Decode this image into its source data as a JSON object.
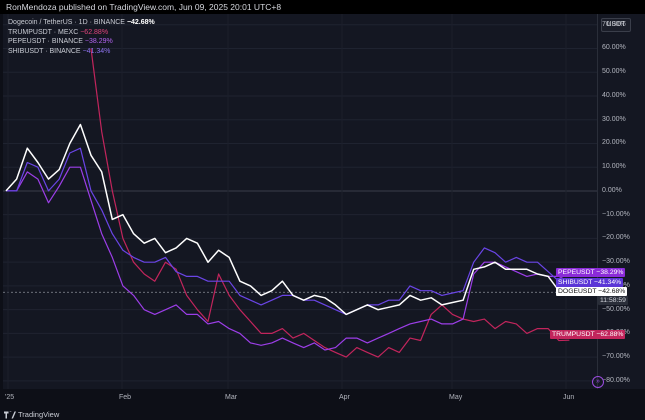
{
  "header": {
    "published_text": "RonMendoza published on TradingView.com, Jun 09, 2025 20:01 UTC+8"
  },
  "legend": {
    "main": {
      "label": "Dogecoin / TetherUS · 1D · BINANCE",
      "value": "−42.68%"
    },
    "items": [
      {
        "label": "TRUMPUSDT · MEXC",
        "value": "−62.88%",
        "color": "#c2255c"
      },
      {
        "label": "PEPEUSDT · BINANCE",
        "value": "−38.29%",
        "color": "#9c3ee8"
      },
      {
        "label": "SHIBUSDT · BINANCE",
        "value": "−41.34%",
        "color": "#6a45e6"
      }
    ]
  },
  "currency_button": "USDT",
  "y_axis": {
    "ticks": [
      {
        "label": "70.00%",
        "value": 70
      },
      {
        "label": "60.00%",
        "value": 60
      },
      {
        "label": "50.00%",
        "value": 50
      },
      {
        "label": "40.00%",
        "value": 40
      },
      {
        "label": "30.00%",
        "value": 30
      },
      {
        "label": "20.00%",
        "value": 20
      },
      {
        "label": "10.00%",
        "value": 10
      },
      {
        "label": "0.00%",
        "value": 0
      },
      {
        "label": "−10.00%",
        "value": -10
      },
      {
        "label": "−20.00%",
        "value": -20
      },
      {
        "label": "−30.00%",
        "value": -30
      },
      {
        "label": "−40.00%",
        "value": -40
      },
      {
        "label": "−50.00%",
        "value": -50
      },
      {
        "label": "−60.00%",
        "value": -60
      },
      {
        "label": "−70.00%",
        "value": -70
      },
      {
        "label": "−80.00%",
        "value": -80
      }
    ]
  },
  "x_axis": {
    "labels": [
      "'25",
      "Feb",
      "Mar",
      "Apr",
      "May",
      "Jun"
    ]
  },
  "price_tags": {
    "pepe": {
      "symbol": "PEPEUSDT",
      "value": "−38.29%"
    },
    "shib": {
      "symbol": "SHIBUSDT",
      "value": "−41.34%"
    },
    "doge": {
      "symbol": "DOGEUSDT",
      "value": "−42.68%"
    },
    "time": "11:58:59",
    "trump": {
      "symbol": "TRUMPUSDT",
      "value": "−62.88%"
    }
  },
  "footer": {
    "brand": "TradingView"
  },
  "colors": {
    "doge": "#ffffff",
    "trump": "#c2255c",
    "pepe": "#9c3ee8",
    "shib": "#6a45e6",
    "background": "#141722"
  },
  "chart_data": {
    "type": "line",
    "x": [
      "2025-01-01",
      "2025-01-04",
      "2025-01-07",
      "2025-01-10",
      "2025-01-13",
      "2025-01-16",
      "2025-01-19",
      "2025-01-22",
      "2025-01-25",
      "2025-01-28",
      "2025-01-31",
      "2025-02-03",
      "2025-02-06",
      "2025-02-09",
      "2025-02-12",
      "2025-02-15",
      "2025-02-18",
      "2025-02-21",
      "2025-02-24",
      "2025-02-27",
      "2025-03-02",
      "2025-03-05",
      "2025-03-08",
      "2025-03-11",
      "2025-03-14",
      "2025-03-17",
      "2025-03-20",
      "2025-03-23",
      "2025-03-26",
      "2025-03-29",
      "2025-04-01",
      "2025-04-04",
      "2025-04-07",
      "2025-04-10",
      "2025-04-13",
      "2025-04-16",
      "2025-04-19",
      "2025-04-22",
      "2025-04-25",
      "2025-04-28",
      "2025-05-01",
      "2025-05-04",
      "2025-05-07",
      "2025-05-10",
      "2025-05-13",
      "2025-05-16",
      "2025-05-19",
      "2025-05-22",
      "2025-05-25",
      "2025-05-28",
      "2025-05-31",
      "2025-06-03",
      "2025-06-06",
      "2025-06-09"
    ],
    "series": [
      {
        "name": "DOGEUSDT",
        "color": "#ffffff",
        "values": [
          0,
          5,
          18,
          12,
          5,
          9,
          20,
          28,
          15,
          8,
          -12,
          -10,
          -18,
          -22,
          -20,
          -26,
          -24,
          -20,
          -22,
          -30,
          -25,
          -28,
          -38,
          -40,
          -44,
          -42,
          -38,
          -44,
          -46,
          -44,
          -45,
          -48,
          -52,
          -50,
          -48,
          -50,
          -49,
          -48,
          -44,
          -46,
          -45,
          -48,
          -47,
          -46,
          -33,
          -32,
          -30,
          -33,
          -33,
          -33,
          -35,
          -36,
          -42,
          -42.68
        ]
      },
      {
        "name": "TRUMPUSDT",
        "color": "#c2255c",
        "values": [
          null,
          null,
          null,
          null,
          null,
          null,
          null,
          null,
          60,
          25,
          0,
          -20,
          -30,
          -35,
          -38,
          -30,
          -33,
          -44,
          -50,
          -55,
          -35,
          -44,
          -50,
          -55,
          -60,
          -60,
          -58,
          -62,
          -60,
          -63,
          -66,
          -68,
          -70,
          -66,
          -68,
          -70,
          -66,
          -68,
          -62,
          -63,
          -52,
          -48,
          -52,
          -54,
          -55,
          -54,
          -58,
          -55,
          -56,
          -60,
          -58,
          -58,
          -63,
          -62.88
        ]
      },
      {
        "name": "PEPEUSDT",
        "color": "#9c3ee8",
        "values": [
          0,
          0,
          8,
          5,
          -5,
          2,
          10,
          10,
          -4,
          -18,
          -28,
          -40,
          -44,
          -50,
          -52,
          -50,
          -48,
          -52,
          -52,
          -56,
          -55,
          -58,
          -60,
          -64,
          -65,
          -64,
          -62,
          -64,
          -66,
          -64,
          -67,
          -66,
          -62,
          -62,
          -64,
          -62,
          -60,
          -58,
          -56,
          -55,
          -54,
          -56,
          -56,
          -54,
          -35,
          -30,
          -30,
          -32,
          -34,
          -36,
          -35,
          -36,
          -36,
          -38.29
        ]
      },
      {
        "name": "SHIBUSDT",
        "color": "#6a45e6",
        "values": [
          0,
          0,
          12,
          10,
          0,
          5,
          16,
          18,
          0,
          -8,
          -18,
          -25,
          -28,
          -30,
          -30,
          -28,
          -34,
          -36,
          -36,
          -38,
          -38,
          -38,
          -44,
          -46,
          -48,
          -46,
          -44,
          -44,
          -46,
          -46,
          -48,
          -50,
          -52,
          -50,
          -48,
          -48,
          -46,
          -46,
          -40,
          -42,
          -42,
          -44,
          -43,
          -42,
          -30,
          -24,
          -26,
          -30,
          -28,
          -30,
          -30,
          -34,
          -38,
          -41.34
        ]
      }
    ],
    "ylim": [
      -85,
      75
    ],
    "grid": true,
    "legend_position": "top-left"
  }
}
